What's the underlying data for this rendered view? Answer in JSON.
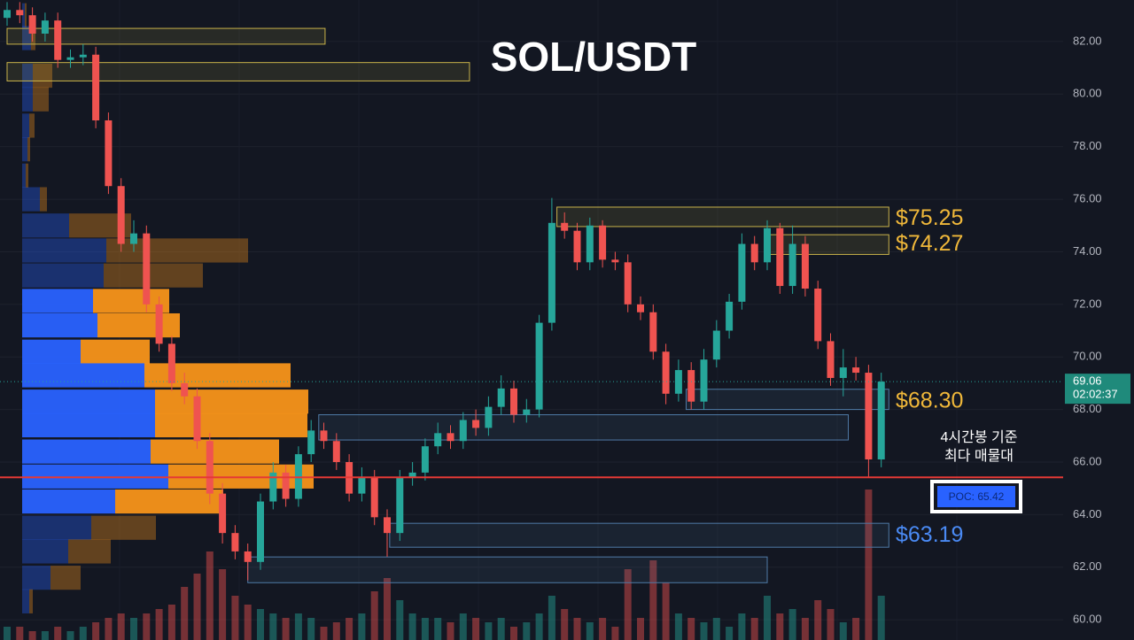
{
  "chart_data": {
    "type": "candlestick",
    "title": "SOL/USDT",
    "ylim": [
      59.23,
      83.58
    ],
    "yticks": [
      {
        "value": 60,
        "label": "60.00"
      },
      {
        "value": 62,
        "label": "62.00"
      },
      {
        "value": 64,
        "label": "64.00"
      },
      {
        "value": 66,
        "label": "66.00"
      },
      {
        "value": 68,
        "label": "68.00"
      },
      {
        "value": 70,
        "label": "70.00"
      },
      {
        "value": 72,
        "label": "72.00"
      },
      {
        "value": 74,
        "label": "74.00"
      },
      {
        "value": 76,
        "label": "76.00"
      },
      {
        "value": 78,
        "label": "78.00"
      },
      {
        "value": 80,
        "label": "80.00"
      },
      {
        "value": 82,
        "label": "82.00"
      }
    ],
    "grid": true,
    "up_color": "#26a69a",
    "down_color": "#ef5350",
    "open": [
      82.9,
      83.2,
      83.0,
      82.3,
      82.8,
      81.3,
      81.4,
      81.5,
      79.0,
      76.5,
      74.3,
      74.7,
      72.0,
      70.5,
      69.0,
      68.5,
      66.8,
      64.8,
      63.3,
      62.6,
      62.2,
      64.5,
      65.6,
      64.6,
      66.3,
      67.2,
      66.8,
      66.0,
      64.8,
      65.4,
      63.9,
      63.3,
      65.4,
      65.6,
      66.6,
      67.1,
      66.8,
      67.6,
      67.3,
      68.1,
      68.8,
      67.8,
      68.0,
      71.3,
      75.1,
      74.8,
      73.6,
      75.0,
      73.7,
      73.6,
      72.0,
      71.7,
      70.2,
      68.6,
      69.5,
      68.3,
      69.9,
      71.0,
      72.1,
      74.3,
      73.6,
      74.9,
      72.7,
      74.3,
      72.6,
      70.6,
      69.2,
      69.6,
      69.4,
      66.1
    ],
    "high": [
      83.5,
      83.5,
      83.3,
      83.1,
      83.1,
      81.7,
      81.9,
      81.8,
      79.3,
      76.8,
      75.2,
      75.0,
      72.3,
      70.8,
      69.4,
      68.8,
      67.1,
      65.2,
      63.6,
      62.9,
      64.8,
      66.0,
      65.9,
      66.6,
      67.6,
      67.5,
      67.1,
      66.3,
      65.8,
      65.7,
      64.2,
      65.7,
      66.0,
      66.9,
      67.5,
      67.4,
      67.9,
      68.0,
      68.5,
      69.3,
      69.1,
      68.4,
      71.6,
      76.05,
      75.5,
      75.1,
      75.3,
      75.2,
      74.0,
      73.9,
      72.3,
      72.0,
      70.5,
      69.9,
      69.8,
      70.3,
      71.4,
      72.4,
      74.7,
      74.6,
      75.2,
      75.1,
      75.0,
      74.6,
      72.9,
      70.9,
      70.3,
      70.0,
      69.7,
      69.4
    ],
    "low": [
      82.6,
      82.7,
      82.0,
      82.0,
      81.0,
      81.0,
      81.1,
      78.7,
      76.2,
      74.0,
      74.0,
      71.7,
      70.2,
      68.7,
      68.2,
      66.5,
      64.4,
      62.9,
      62.3,
      61.5,
      61.9,
      64.2,
      64.3,
      64.3,
      66.0,
      66.5,
      65.7,
      64.5,
      64.5,
      63.6,
      62.4,
      63.0,
      65.1,
      65.3,
      66.3,
      66.5,
      66.5,
      67.0,
      67.0,
      67.8,
      67.5,
      67.5,
      67.7,
      71.0,
      74.5,
      73.3,
      73.3,
      73.4,
      73.3,
      71.7,
      71.4,
      69.9,
      68.2,
      68.3,
      68.0,
      68.0,
      69.6,
      70.7,
      71.8,
      73.3,
      73.3,
      72.4,
      72.4,
      72.3,
      70.3,
      68.9,
      68.5,
      69.1,
      65.4,
      65.8
    ],
    "close": [
      83.2,
      83.0,
      82.3,
      82.8,
      81.3,
      81.4,
      81.5,
      79.0,
      76.5,
      74.3,
      74.7,
      72.0,
      70.5,
      69.0,
      68.5,
      66.8,
      64.8,
      63.3,
      62.6,
      62.2,
      64.5,
      65.6,
      64.6,
      66.3,
      67.2,
      66.8,
      66.0,
      64.8,
      65.4,
      63.9,
      63.3,
      65.4,
      65.6,
      66.6,
      67.1,
      66.8,
      67.6,
      67.3,
      68.1,
      68.8,
      67.8,
      68.0,
      71.3,
      75.1,
      74.8,
      73.6,
      75.0,
      73.7,
      73.6,
      72.0,
      71.7,
      70.2,
      68.6,
      69.5,
      68.3,
      69.9,
      71.0,
      72.1,
      74.3,
      73.6,
      74.9,
      72.7,
      74.3,
      72.6,
      70.6,
      69.2,
      69.6,
      69.4,
      66.1,
      69.06
    ],
    "volume": [
      0.3,
      0.3,
      0.2,
      0.2,
      0.3,
      0.2,
      0.3,
      0.4,
      0.5,
      0.6,
      0.5,
      0.6,
      0.7,
      0.8,
      1.2,
      1.5,
      2.0,
      1.6,
      1.0,
      0.8,
      0.7,
      0.6,
      0.5,
      0.6,
      0.5,
      0.3,
      0.4,
      0.5,
      0.6,
      1.1,
      1.4,
      0.9,
      0.6,
      0.5,
      0.5,
      0.4,
      0.6,
      0.5,
      0.4,
      0.5,
      0.3,
      0.4,
      0.6,
      1.0,
      0.7,
      0.5,
      0.4,
      0.5,
      0.3,
      1.6,
      0.5,
      1.8,
      1.3,
      0.6,
      0.5,
      0.4,
      0.5,
      0.3,
      0.6,
      0.5,
      1.0,
      0.6,
      0.7,
      0.5,
      0.9,
      0.7,
      0.4,
      0.5,
      3.4,
      1.0
    ],
    "volume_ylim": [
      0,
      14.46
    ],
    "profile": {
      "xlim": [
        0,
        1280
      ],
      "levels": [
        83.0,
        82.13,
        80.7,
        79.8,
        78.8,
        77.9,
        76.9,
        76.0,
        75.0,
        74.05,
        73.1,
        72.13,
        71.2,
        70.2,
        69.3,
        68.3,
        67.4,
        66.4,
        65.45,
        64.5,
        63.5,
        62.6,
        61.6,
        60.7
      ],
      "buy": [
        3,
        10,
        12,
        12,
        8,
        6,
        4,
        20,
        53,
        95,
        92,
        80,
        85,
        66,
        138,
        150,
        150,
        145,
        165,
        105,
        78,
        52,
        32,
        8
      ],
      "sell": [
        2,
        5,
        22,
        18,
        6,
        3,
        3,
        8,
        70,
        160,
        112,
        86,
        93,
        78,
        165,
        173,
        172,
        145,
        164,
        122,
        73,
        48,
        34,
        4
      ],
      "buy_color": "#2962ff",
      "sell_color": "#f7931a"
    },
    "zones": [
      {
        "low": 81.9,
        "high": 82.5,
        "start": 0,
        "end": 25.1,
        "color": "#c9b34a"
      },
      {
        "low": 80.5,
        "high": 81.2,
        "start": 0,
        "end": 36.5,
        "color": "#c9b34a"
      },
      {
        "low": 74.96,
        "high": 75.7,
        "start": 43.4,
        "end": 69.6,
        "color": "#c9b34a"
      },
      {
        "low": 73.9,
        "high": 74.65,
        "start": 59.9,
        "end": 69.6,
        "color": "#c9b34a"
      },
      {
        "low": 68.0,
        "high": 68.77,
        "start": 53.6,
        "end": 69.6,
        "color": "#4f7aa6"
      },
      {
        "low": 66.84,
        "high": 67.8,
        "start": 24.6,
        "end": 66.4,
        "color": "#4f7aa6"
      },
      {
        "low": 62.76,
        "high": 63.67,
        "start": 30.2,
        "end": 69.6,
        "color": "#4f7aa6"
      },
      {
        "low": 61.41,
        "high": 62.39,
        "start": 19.0,
        "end": 60.0,
        "color": "#4f7aa6"
      }
    ],
    "levels": [
      {
        "value": 75.25,
        "label": "$75.25",
        "color": "#f0b83a"
      },
      {
        "value": 74.27,
        "label": "$74.27",
        "color": "#f0b83a"
      },
      {
        "value": 68.3,
        "label": "$68.30",
        "color": "#f0b83a"
      },
      {
        "value": 63.19,
        "label": "$63.19",
        "color": "#4a8af4"
      }
    ],
    "poc": {
      "value": 65.42,
      "label": "POC: 65.42"
    },
    "poc_note": [
      "4시간봉 기준",
      "최다 매물대"
    ],
    "last_price": 69.06,
    "countdown": "02:02:37"
  }
}
